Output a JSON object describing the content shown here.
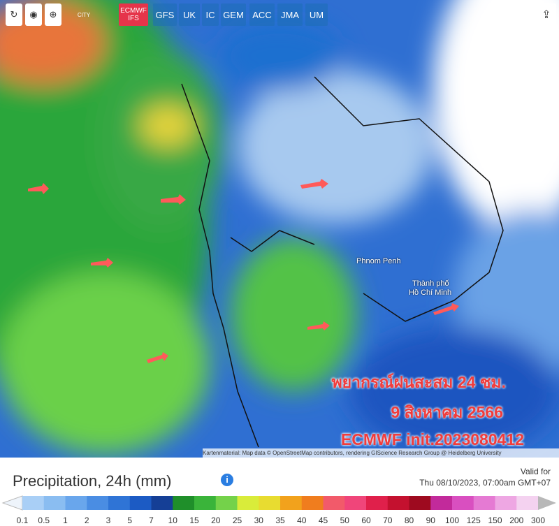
{
  "toolbar": {
    "city": "CITY",
    "models": [
      "ECMWF IFS",
      "GFS",
      "UK",
      "IC",
      "GEM",
      "ACC",
      "JMA",
      "UM"
    ]
  },
  "map": {
    "labels": [
      "Phnom Penh",
      "Thành phố",
      "Hồ Chí Minh"
    ],
    "overlay": [
      "พยากรณ์ฝนสะสม 24 ชม.",
      "9 สิงหาคม 2566",
      "ECMWF init.2023080412"
    ],
    "attribution": "Kartenmaterial: Map data © OpenStreetMap contributors, rendering GIScience Research Group @ Heidelberg University"
  },
  "legend": {
    "title": "Precipitation, 24h (mm)",
    "valid_for": "Valid for",
    "valid_time": "Thu 08/10/2023, 07:00am GMT+07",
    "stops": [
      "0.1",
      "0.5",
      "1",
      "2",
      "3",
      "5",
      "7",
      "10",
      "15",
      "20",
      "25",
      "30",
      "35",
      "40",
      "45",
      "50",
      "60",
      "70",
      "80",
      "90",
      "100",
      "125",
      "150",
      "200",
      "300"
    ],
    "colors": [
      "#a9cff6",
      "#8abdf1",
      "#69a6ec",
      "#4a8de3",
      "#2f74d6",
      "#1c5bc4",
      "#153f96",
      "#1f8f2a",
      "#3ab43a",
      "#74d24a",
      "#d9ec3a",
      "#e8dc30",
      "#f2a21c",
      "#f07d1e",
      "#f25a6a",
      "#f0457a",
      "#e0204b",
      "#c4112f",
      "#9e0a1f",
      "#c22a9b",
      "#d94fc0",
      "#e57ad3",
      "#eea7e3",
      "#f4d2f0"
    ]
  }
}
